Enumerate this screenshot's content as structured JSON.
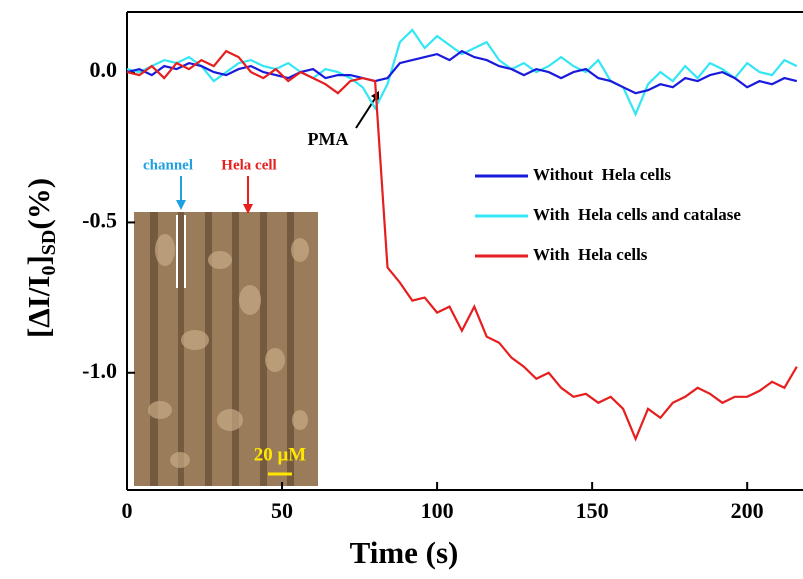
{
  "chart_data": {
    "type": "line",
    "xlabel": "Time (s)",
    "ylabel_parts": [
      "[ΔI/I",
      "0",
      "]",
      "SD",
      "(%)"
    ],
    "xlim": [
      0,
      218
    ],
    "ylim": [
      -1.39,
      0.2
    ],
    "xticks": [
      0,
      50,
      100,
      150,
      200
    ],
    "yticks": [
      {
        "value": -1.0,
        "label": "-1.0"
      },
      {
        "value": -0.5,
        "label": "-0.5"
      },
      {
        "value": 0.0,
        "label": "0.0"
      }
    ],
    "annotations": [
      "PMA",
      "channel",
      "Hela cell",
      "20 μM"
    ],
    "x": [
      0,
      4,
      8,
      12,
      16,
      20,
      24,
      28,
      32,
      36,
      40,
      44,
      48,
      52,
      56,
      60,
      64,
      68,
      72,
      76,
      80,
      84,
      88,
      92,
      96,
      100,
      104,
      108,
      112,
      116,
      120,
      124,
      128,
      132,
      136,
      140,
      144,
      148,
      152,
      156,
      160,
      164,
      168,
      172,
      176,
      180,
      184,
      188,
      192,
      196,
      200,
      204,
      208,
      212,
      216
    ],
    "series": [
      {
        "name": "Without  Hela cells",
        "color": "#1a1adc",
        "values": [
          0.0,
          0.01,
          -0.01,
          0.02,
          0.01,
          0.03,
          0.02,
          0.0,
          -0.01,
          0.01,
          0.02,
          0.0,
          -0.01,
          -0.02,
          0.0,
          0.01,
          -0.02,
          -0.01,
          -0.01,
          -0.02,
          -0.03,
          -0.02,
          0.03,
          0.04,
          0.05,
          0.06,
          0.04,
          0.07,
          0.05,
          0.04,
          0.02,
          0.01,
          -0.01,
          0.01,
          0.0,
          -0.02,
          0.0,
          0.01,
          -0.02,
          -0.03,
          -0.05,
          -0.07,
          -0.06,
          -0.04,
          -0.05,
          -0.02,
          -0.03,
          -0.01,
          0.0,
          -0.02,
          -0.05,
          -0.03,
          -0.04,
          -0.02,
          -0.03
        ]
      },
      {
        "name": "With  Hela cells and catalase",
        "color": "#33e6f5",
        "values": [
          0.01,
          0.0,
          0.02,
          0.04,
          0.03,
          0.05,
          0.02,
          -0.03,
          0.0,
          0.03,
          0.04,
          0.02,
          0.01,
          0.03,
          0.0,
          -0.02,
          0.01,
          0.0,
          -0.02,
          -0.05,
          -0.12,
          -0.04,
          0.1,
          0.14,
          0.08,
          0.12,
          0.09,
          0.06,
          0.08,
          0.1,
          0.04,
          0.01,
          0.03,
          0.0,
          0.02,
          0.05,
          0.02,
          0.0,
          0.04,
          -0.03,
          -0.05,
          -0.14,
          -0.04,
          0.0,
          -0.03,
          0.02,
          -0.02,
          0.03,
          0.01,
          -0.02,
          0.03,
          0.0,
          -0.01,
          0.04,
          0.02
        ]
      },
      {
        "name": "With  Hela cells",
        "color": "#e61e1e",
        "values": [
          0.0,
          -0.01,
          0.02,
          -0.02,
          0.03,
          0.01,
          0.04,
          0.02,
          0.07,
          0.05,
          0.0,
          -0.02,
          0.01,
          -0.03,
          0.0,
          -0.02,
          -0.04,
          -0.07,
          -0.03,
          -0.02,
          -0.03,
          -0.65,
          -0.7,
          -0.76,
          -0.75,
          -0.8,
          -0.78,
          -0.86,
          -0.78,
          -0.88,
          -0.9,
          -0.95,
          -0.98,
          -1.02,
          -1.0,
          -1.05,
          -1.08,
          -1.07,
          -1.1,
          -1.08,
          -1.12,
          -1.22,
          -1.12,
          -1.15,
          -1.1,
          -1.08,
          -1.05,
          -1.07,
          -1.1,
          -1.08,
          -1.08,
          -1.06,
          -1.03,
          -1.05,
          -0.98
        ]
      }
    ]
  }
}
